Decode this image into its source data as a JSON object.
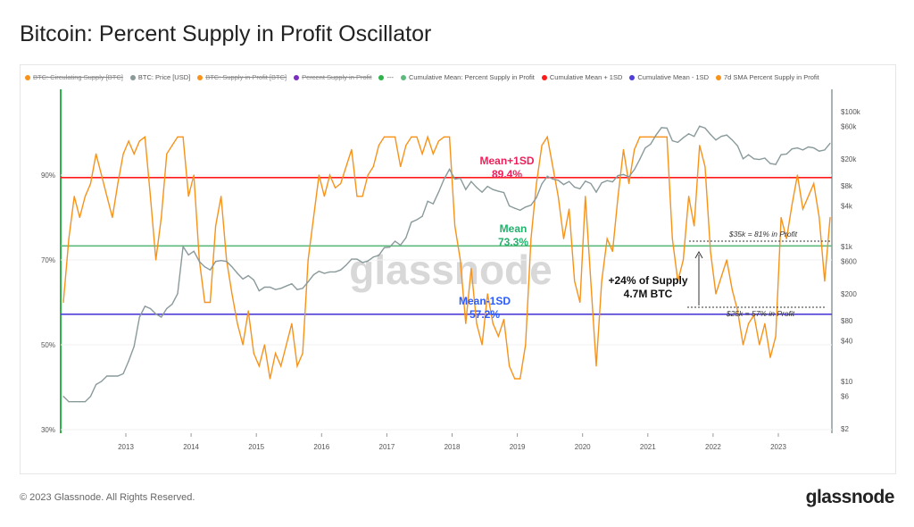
{
  "title": "Bitcoin: Percent Supply in Profit Oscillator",
  "footer": "© 2023 Glassnode. All Rights Reserved.",
  "brand": "glassnode",
  "watermark": "glassnode",
  "legend": [
    {
      "label": "BTC: Circulating Supply [BTC]",
      "color": "#f7931a",
      "disabled": true
    },
    {
      "label": "BTC: Price [USD]",
      "color": "#8a9a9b",
      "disabled": false
    },
    {
      "label": "BTC: Supply in Profit [BTC]",
      "color": "#f7931a",
      "disabled": true
    },
    {
      "label": "Percent Supply in Profit",
      "color": "#7b2fbe",
      "disabled": true
    },
    {
      "label": "---",
      "color": "#2db34a",
      "disabled": false
    },
    {
      "label": "Cumulative Mean: Percent Supply in Profit",
      "color": "#5cba7d",
      "disabled": false
    },
    {
      "label": "Cumulative Mean + 1SD",
      "color": "#ff1a1a",
      "disabled": false
    },
    {
      "label": "Cumulative Mean - 1SD",
      "color": "#4f3fd6",
      "disabled": false
    },
    {
      "label": "7d SMA Percent Supply in Profit",
      "color": "#f7931a",
      "disabled": false
    }
  ],
  "annotations": {
    "mean_plus": {
      "label": "Mean+1SD",
      "value": "89.4%",
      "color": "#ee1f5a"
    },
    "mean": {
      "label": "Mean",
      "value": "73.3%",
      "color": "#1fb36b"
    },
    "mean_minus": {
      "label": "Mean-1SD",
      "value": "57.2%",
      "color": "#2a5bff"
    },
    "upper_note": "$35k = 81% in Profit",
    "lower_note": "$25k = 57% in Profit",
    "gap_line1": "+24% of Supply",
    "gap_line2": "4.7M BTC"
  },
  "chart_data": {
    "type": "line",
    "title": "Bitcoin: Percent Supply in Profit Oscillator",
    "x_start": "2012-01",
    "x_step": "month",
    "x_ticks": [
      "2013",
      "2014",
      "2015",
      "2016",
      "2017",
      "2018",
      "2019",
      "2020",
      "2021",
      "2022",
      "2023"
    ],
    "y_left": {
      "ticks": [
        "30%",
        "50%",
        "70%",
        "90%"
      ],
      "tick_values": [
        30,
        50,
        70,
        90
      ],
      "range": [
        29.5,
        100
      ]
    },
    "y_right": {
      "scale": "log",
      "ticks": [
        "$2",
        "$6",
        "$10",
        "$40",
        "$80",
        "$200",
        "$600",
        "$1k",
        "$4k",
        "$8k",
        "$20k",
        "$60k",
        "$100k"
      ],
      "tick_values": [
        2,
        6,
        10,
        40,
        80,
        200,
        600,
        1000,
        4000,
        8000,
        20000,
        60000,
        100000
      ]
    },
    "hlines": [
      {
        "name": "Cumulative Mean + 1SD",
        "value": 89.4,
        "color": "#ff1a1a"
      },
      {
        "name": "Cumulative Mean: Percent Supply in Profit",
        "value": 73.3,
        "color": "#5cba7d"
      },
      {
        "name": "Cumulative Mean - 1SD",
        "value": 57.2,
        "color": "#4f3fd6"
      }
    ],
    "reference_levels": [
      81,
      57
    ],
    "series": [
      {
        "name": "7d SMA Percent Supply in Profit",
        "axis": "left",
        "color": "#f7931a",
        "values": [
          60,
          75,
          85,
          80,
          85,
          88,
          95,
          90,
          85,
          80,
          88,
          95,
          98,
          95,
          98,
          99,
          85,
          70,
          80,
          95,
          97,
          99,
          99,
          85,
          90,
          70,
          60,
          60,
          78,
          85,
          70,
          62,
          55,
          50,
          58,
          48,
          45,
          50,
          42,
          48,
          45,
          50,
          55,
          45,
          48,
          70,
          80,
          90,
          85,
          90,
          87,
          88,
          92,
          96,
          85,
          85,
          90,
          92,
          97,
          99,
          99,
          99,
          92,
          97,
          99,
          99,
          95,
          99,
          95,
          98,
          99,
          99,
          78,
          70,
          55,
          68,
          55,
          50,
          62,
          55,
          52,
          56,
          45,
          42,
          42,
          50,
          75,
          88,
          97,
          99,
          92,
          85,
          75,
          82,
          65,
          60,
          85,
          65,
          45,
          65,
          75,
          72,
          85,
          96,
          88,
          96,
          99,
          99,
          99,
          99,
          99,
          99,
          75,
          65,
          70,
          85,
          78,
          97,
          92,
          72,
          62,
          66,
          70,
          63,
          58,
          50,
          55,
          57,
          50,
          55,
          47,
          52,
          80,
          75,
          83,
          90,
          82,
          85,
          88,
          80,
          65,
          80
        ]
      },
      {
        "name": "BTC: Price [USD]",
        "axis": "right",
        "color": "#8a9a9b",
        "values": [
          6,
          5,
          5,
          5,
          5,
          6,
          9,
          10,
          12,
          12,
          12,
          13,
          20,
          33,
          90,
          130,
          120,
          100,
          90,
          120,
          140,
          200,
          1000,
          750,
          850,
          600,
          500,
          450,
          600,
          620,
          600,
          500,
          400,
          330,
          370,
          320,
          220,
          250,
          250,
          230,
          240,
          260,
          280,
          230,
          240,
          300,
          380,
          430,
          400,
          420,
          420,
          450,
          530,
          650,
          650,
          580,
          610,
          700,
          740,
          960,
          980,
          1200,
          1050,
          1350,
          2300,
          2500,
          2800,
          4700,
          4300,
          6400,
          10000,
          14000,
          10000,
          10300,
          7000,
          9200,
          7500,
          6400,
          7800,
          7000,
          6600,
          6300,
          4000,
          3700,
          3450,
          3850,
          4100,
          5300,
          8500,
          11000,
          10000,
          9600,
          8300,
          9200,
          7600,
          7200,
          9300,
          8600,
          6400,
          8800,
          9500,
          9100,
          11300,
          11700,
          10800,
          13800,
          19700,
          29000,
          33000,
          45000,
          58000,
          57000,
          37000,
          35000,
          41000,
          47000,
          43000,
          61000,
          57000,
          46000,
          38000,
          43000,
          45000,
          38000,
          31000,
          20000,
          23000,
          20000,
          19500,
          20500,
          17000,
          16500,
          23000,
          23500,
          28000,
          29000,
          27000,
          30000,
          29000,
          26000,
          27000,
          34000
        ]
      }
    ]
  }
}
